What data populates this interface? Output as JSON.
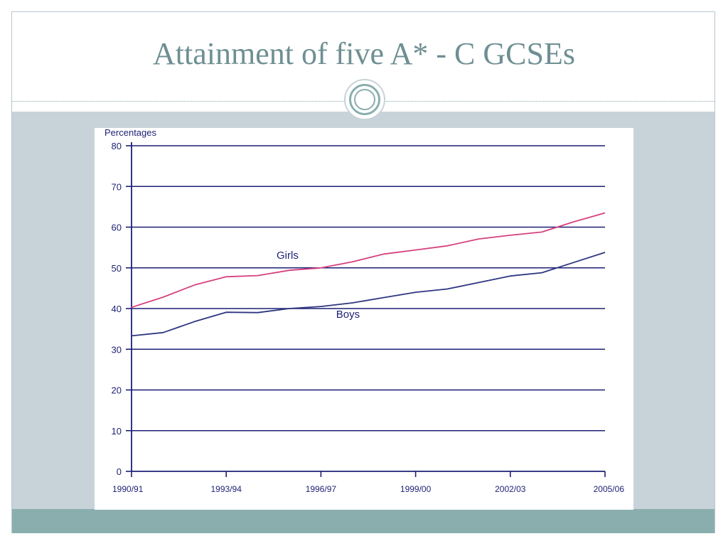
{
  "slide": {
    "title": "Attainment of five A* - C GCSEs"
  },
  "colors": {
    "title": "#6e8f93",
    "content_band": "#c7d3d8",
    "bottom_band": "#8aaeae",
    "axis": "#1c1f73",
    "girls_line": "#d6417e",
    "boys_line": "#2e3580"
  },
  "chart_data": {
    "type": "line",
    "title": "",
    "ylabel": "Percentages",
    "xlabel": "",
    "ylim": [
      0,
      80
    ],
    "yticks": [
      0,
      10,
      20,
      30,
      40,
      50,
      60,
      70,
      80
    ],
    "x_tick_labels": [
      "1990/91",
      "1993/94",
      "1996/97",
      "1999/00",
      "2002/03",
      "2005/06"
    ],
    "x": [
      "1990/91",
      "1991/92",
      "1992/93",
      "1993/94",
      "1994/95",
      "1995/96",
      "1996/97",
      "1997/98",
      "1998/99",
      "1999/00",
      "2000/01",
      "2001/02",
      "2002/03",
      "2003/04",
      "2004/05",
      "2005/06"
    ],
    "grid": true,
    "legend": "inline labels",
    "series": [
      {
        "name": "Girls",
        "values": [
          40.3,
          42.8,
          45.8,
          47.8,
          48.1,
          49.4,
          50.0,
          51.5,
          53.4,
          54.4,
          55.4,
          57.1,
          58.0,
          58.8,
          61.3,
          63.5
        ]
      },
      {
        "name": "Boys",
        "values": [
          33.3,
          34.1,
          36.8,
          39.1,
          39.0,
          40.0,
          40.5,
          41.4,
          42.7,
          44.0,
          44.8,
          46.4,
          48.0,
          48.8,
          51.3,
          53.8
        ]
      }
    ]
  }
}
